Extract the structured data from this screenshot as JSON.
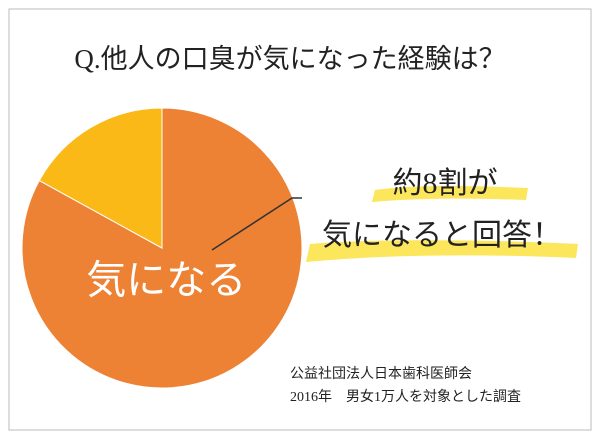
{
  "chart_data": {
    "type": "pie",
    "title": "Q.他人の口臭が気になった経験は？",
    "categories": [
      "気になる",
      null
    ],
    "values": [
      83,
      17
    ],
    "colors": [
      "#ee8234",
      "#fbb917"
    ],
    "annotations": [
      "約8割が",
      "気になると回答！"
    ],
    "source": [
      "公益社団法人日本歯科医師会",
      "2016年　男女1万人を対象とした調査"
    ]
  }
}
